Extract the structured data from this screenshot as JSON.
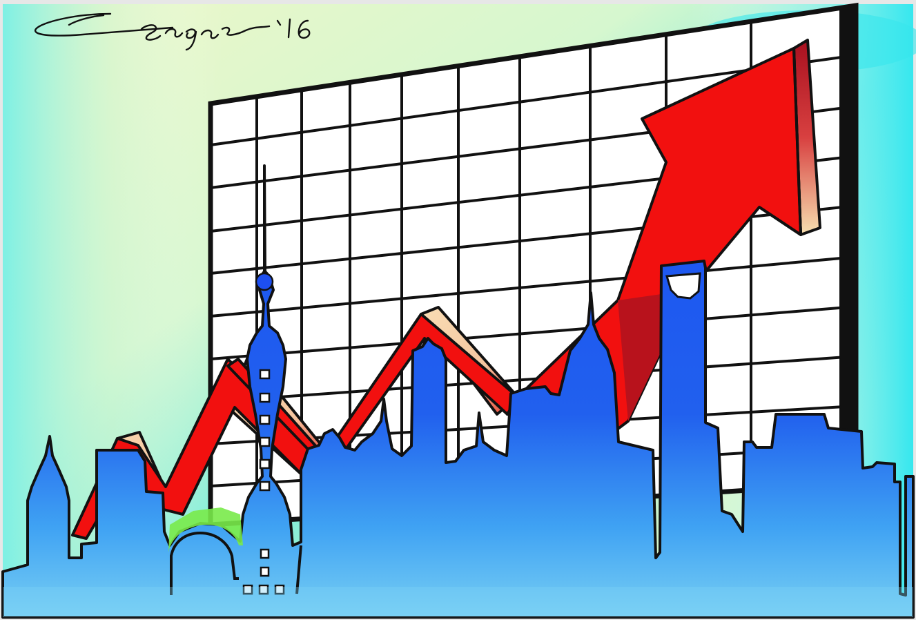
{
  "signature": {
    "text": "C. Sagar '16"
  },
  "colors": {
    "sky_top": "#eaf6c6",
    "sky_mid": "#bff4d6",
    "sky_edge": "#35e6ee",
    "board_bg": "#ffffff",
    "board_grid": "#111111",
    "arrow_red": "#f20f0f",
    "arrow_dark": "#b00d1c",
    "arrow_light": "#f7d9b0",
    "skyline_blue": "#1a4ff0",
    "skyline_light": "#3f9ef5",
    "skyline_bottom": "#6ec9f4",
    "outline": "#111111",
    "ground_green": "#6fe94a"
  },
  "icons": {
    "signature": "signature-icon",
    "chart_board": "grid-board-icon",
    "trend_arrow": "rising-arrow-icon",
    "skyline": "city-skyline-icon",
    "tower": "tv-tower-icon"
  }
}
